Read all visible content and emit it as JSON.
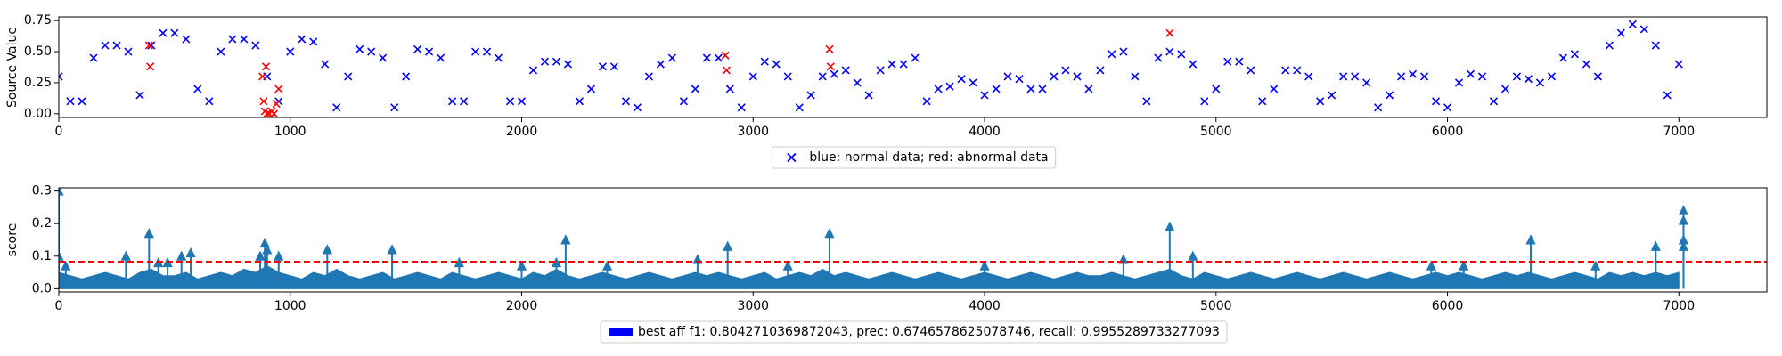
{
  "chart_data": [
    {
      "type": "scatter",
      "ylabel": "Source Value",
      "xlim": [
        0,
        7380
      ],
      "ylim": [
        -0.03,
        0.78
      ],
      "xticks": [
        0,
        1000,
        2000,
        3000,
        4000,
        5000,
        6000,
        7000
      ],
      "yticks": [
        {
          "value": 0,
          "label": "0.00"
        },
        {
          "value": 0.25,
          "label": "0.25"
        },
        {
          "value": 0.5,
          "label": "0.50"
        },
        {
          "value": 0.75,
          "label": "0.75"
        }
      ],
      "legend": "bottom",
      "series": [
        {
          "name": "blue: normal data; red: abnormal data",
          "color": "#0000ff",
          "marker": "x",
          "x": [
            0,
            50,
            100,
            150,
            200,
            250,
            300,
            350,
            400,
            450,
            500,
            550,
            600,
            650,
            700,
            750,
            800,
            850,
            900,
            950,
            1000,
            1050,
            1100,
            1150,
            1200,
            1250,
            1300,
            1350,
            1400,
            1450,
            1500,
            1550,
            1600,
            1650,
            1700,
            1750,
            1800,
            1850,
            1900,
            1950,
            2000,
            2050,
            2100,
            2150,
            2200,
            2250,
            2300,
            2350,
            2400,
            2450,
            2500,
            2550,
            2600,
            2650,
            2700,
            2750,
            2800,
            2850,
            2900,
            2950,
            3000,
            3050,
            3100,
            3150,
            3200,
            3250,
            3300,
            3350,
            3400,
            3450,
            3500,
            3550,
            3600,
            3650,
            3700,
            3750,
            3800,
            3850,
            3900,
            3950,
            4000,
            4050,
            4100,
            4150,
            4200,
            4250,
            4300,
            4350,
            4400,
            4450,
            4500,
            4550,
            4600,
            4650,
            4700,
            4750,
            4800,
            4850,
            4900,
            4950,
            5000,
            5050,
            5100,
            5150,
            5200,
            5250,
            5300,
            5350,
            5400,
            5450,
            5500,
            5550,
            5600,
            5650,
            5700,
            5750,
            5800,
            5850,
            5900,
            5950,
            6000,
            6050,
            6100,
            6150,
            6200,
            6250,
            6300,
            6350,
            6400,
            6450,
            6500,
            6550,
            6600,
            6650,
            6700,
            6750,
            6800,
            6850,
            6900,
            6950,
            7000
          ],
          "values": [
            0.3,
            0.1,
            0.1,
            0.45,
            0.55,
            0.55,
            0.5,
            0.15,
            0.55,
            0.65,
            0.65,
            0.6,
            0.2,
            0.1,
            0.5,
            0.6,
            0.6,
            0.55,
            0.3,
            0.1,
            0.5,
            0.6,
            0.58,
            0.4,
            0.05,
            0.3,
            0.52,
            0.5,
            0.45,
            0.05,
            0.3,
            0.52,
            0.5,
            0.45,
            0.1,
            0.1,
            0.5,
            0.5,
            0.45,
            0.1,
            0.1,
            0.35,
            0.42,
            0.42,
            0.4,
            0.1,
            0.2,
            0.38,
            0.38,
            0.1,
            0.05,
            0.3,
            0.4,
            0.45,
            0.1,
            0.2,
            0.45,
            0.45,
            0.2,
            0.05,
            0.3,
            0.42,
            0.4,
            0.3,
            0.05,
            0.15,
            0.3,
            0.32,
            0.35,
            0.25,
            0.15,
            0.35,
            0.4,
            0.4,
            0.45,
            0.1,
            0.2,
            0.22,
            0.28,
            0.25,
            0.15,
            0.2,
            0.3,
            0.28,
            0.2,
            0.2,
            0.3,
            0.35,
            0.3,
            0.2,
            0.35,
            0.48,
            0.5,
            0.3,
            0.1,
            0.45,
            0.5,
            0.48,
            0.4,
            0.1,
            0.2,
            0.42,
            0.42,
            0.35,
            0.1,
            0.2,
            0.35,
            0.35,
            0.3,
            0.1,
            0.15,
            0.3,
            0.3,
            0.25,
            0.05,
            0.15,
            0.3,
            0.32,
            0.3,
            0.1,
            0.05,
            0.25,
            0.32,
            0.3,
            0.1,
            0.2,
            0.3,
            0.28,
            0.25,
            0.3,
            0.45,
            0.48,
            0.4,
            0.3,
            0.55,
            0.65,
            0.72,
            0.68,
            0.55,
            0.15,
            0.4
          ]
        },
        {
          "color": "#ff0000",
          "marker": "x",
          "x": [
            390,
            395,
            880,
            885,
            890,
            895,
            900,
            910,
            920,
            930,
            940,
            950,
            2880,
            2885,
            3330,
            3335,
            4800
          ],
          "values": [
            0.55,
            0.38,
            0.3,
            0.1,
            0.02,
            0.38,
            0.0,
            0.0,
            0.02,
            0.0,
            0.08,
            0.2,
            0.47,
            0.35,
            0.52,
            0.38,
            0.65
          ]
        }
      ]
    },
    {
      "type": "area",
      "ylabel": "score",
      "xlim": [
        0,
        7380
      ],
      "ylim": [
        -0.01,
        0.31
      ],
      "xticks": [
        0,
        1000,
        2000,
        3000,
        4000,
        5000,
        6000,
        7000
      ],
      "yticks": [
        {
          "value": 0,
          "label": "0.0"
        },
        0.1,
        0.2,
        0.3
      ],
      "threshold": 0.083,
      "threshold_color": "#ff0000",
      "legend": "bottom",
      "legend_color": "#0000ff",
      "series": [
        {
          "name": "best aff f1: 0.8042710369872043, prec: 0.6746578625078746, recall: 0.9955289733277093",
          "color": "#1f77b4",
          "x": [
            0,
            50,
            100,
            150,
            200,
            250,
            300,
            350,
            400,
            450,
            500,
            550,
            600,
            650,
            700,
            750,
            800,
            850,
            900,
            950,
            1000,
            1050,
            1100,
            1150,
            1200,
            1250,
            1300,
            1350,
            1400,
            1450,
            1500,
            1550,
            1600,
            1650,
            1700,
            1750,
            1800,
            1850,
            1900,
            1950,
            2000,
            2050,
            2100,
            2150,
            2200,
            2250,
            2300,
            2350,
            2400,
            2450,
            2500,
            2550,
            2600,
            2650,
            2700,
            2750,
            2800,
            2850,
            2900,
            2950,
            3000,
            3050,
            3100,
            3150,
            3200,
            3250,
            3300,
            3350,
            3400,
            3450,
            3500,
            3550,
            3600,
            3650,
            3700,
            3750,
            3800,
            3850,
            3900,
            3950,
            4000,
            4050,
            4100,
            4150,
            4200,
            4250,
            4300,
            4350,
            4400,
            4450,
            4500,
            4550,
            4600,
            4650,
            4700,
            4750,
            4800,
            4850,
            4900,
            4950,
            5000,
            5050,
            5100,
            5150,
            5200,
            5250,
            5300,
            5350,
            5400,
            5450,
            5500,
            5550,
            5600,
            5650,
            5700,
            5750,
            5800,
            5850,
            5900,
            5950,
            6000,
            6050,
            6100,
            6150,
            6200,
            6250,
            6300,
            6350,
            6400,
            6450,
            6500,
            6550,
            6600,
            6650,
            6700,
            6750,
            6800,
            6850,
            6900,
            6950,
            7000
          ],
          "values": [
            0.05,
            0.04,
            0.03,
            0.04,
            0.05,
            0.04,
            0.03,
            0.05,
            0.06,
            0.04,
            0.04,
            0.05,
            0.03,
            0.04,
            0.05,
            0.04,
            0.06,
            0.05,
            0.07,
            0.05,
            0.04,
            0.03,
            0.05,
            0.04,
            0.06,
            0.04,
            0.03,
            0.04,
            0.05,
            0.03,
            0.04,
            0.05,
            0.04,
            0.03,
            0.05,
            0.04,
            0.03,
            0.04,
            0.05,
            0.04,
            0.03,
            0.05,
            0.04,
            0.06,
            0.04,
            0.03,
            0.04,
            0.05,
            0.04,
            0.03,
            0.04,
            0.05,
            0.04,
            0.03,
            0.04,
            0.05,
            0.04,
            0.05,
            0.04,
            0.03,
            0.04,
            0.05,
            0.03,
            0.04,
            0.05,
            0.04,
            0.06,
            0.04,
            0.05,
            0.04,
            0.03,
            0.04,
            0.05,
            0.04,
            0.03,
            0.04,
            0.05,
            0.04,
            0.03,
            0.04,
            0.05,
            0.04,
            0.03,
            0.04,
            0.05,
            0.04,
            0.03,
            0.04,
            0.05,
            0.04,
            0.04,
            0.05,
            0.04,
            0.03,
            0.04,
            0.05,
            0.06,
            0.04,
            0.03,
            0.05,
            0.04,
            0.03,
            0.04,
            0.05,
            0.04,
            0.03,
            0.04,
            0.05,
            0.04,
            0.03,
            0.04,
            0.05,
            0.04,
            0.03,
            0.04,
            0.05,
            0.04,
            0.03,
            0.04,
            0.05,
            0.04,
            0.05,
            0.04,
            0.03,
            0.04,
            0.05,
            0.04,
            0.05,
            0.04,
            0.03,
            0.04,
            0.05,
            0.04,
            0.03,
            0.05,
            0.04,
            0.05,
            0.04,
            0.05,
            0.04,
            0.05
          ]
        },
        {
          "color": "#1f77b4",
          "marker": "^",
          "x": [
            0,
            0,
            30,
            290,
            390,
            430,
            470,
            530,
            570,
            870,
            890,
            900,
            950,
            1160,
            1440,
            1730,
            2000,
            2150,
            2190,
            2370,
            2760,
            2890,
            3150,
            3330,
            4000,
            4600,
            4800,
            4900,
            5930,
            6070,
            6360,
            6640,
            6900,
            7020,
            7020,
            7020,
            7020
          ],
          "values": [
            0.3,
            0.1,
            0.07,
            0.1,
            0.17,
            0.08,
            0.08,
            0.1,
            0.11,
            0.1,
            0.14,
            0.12,
            0.1,
            0.12,
            0.12,
            0.08,
            0.07,
            0.08,
            0.15,
            0.07,
            0.09,
            0.13,
            0.07,
            0.17,
            0.07,
            0.09,
            0.19,
            0.1,
            0.07,
            0.07,
            0.15,
            0.07,
            0.13,
            0.24,
            0.21,
            0.15,
            0.13
          ]
        }
      ]
    }
  ]
}
